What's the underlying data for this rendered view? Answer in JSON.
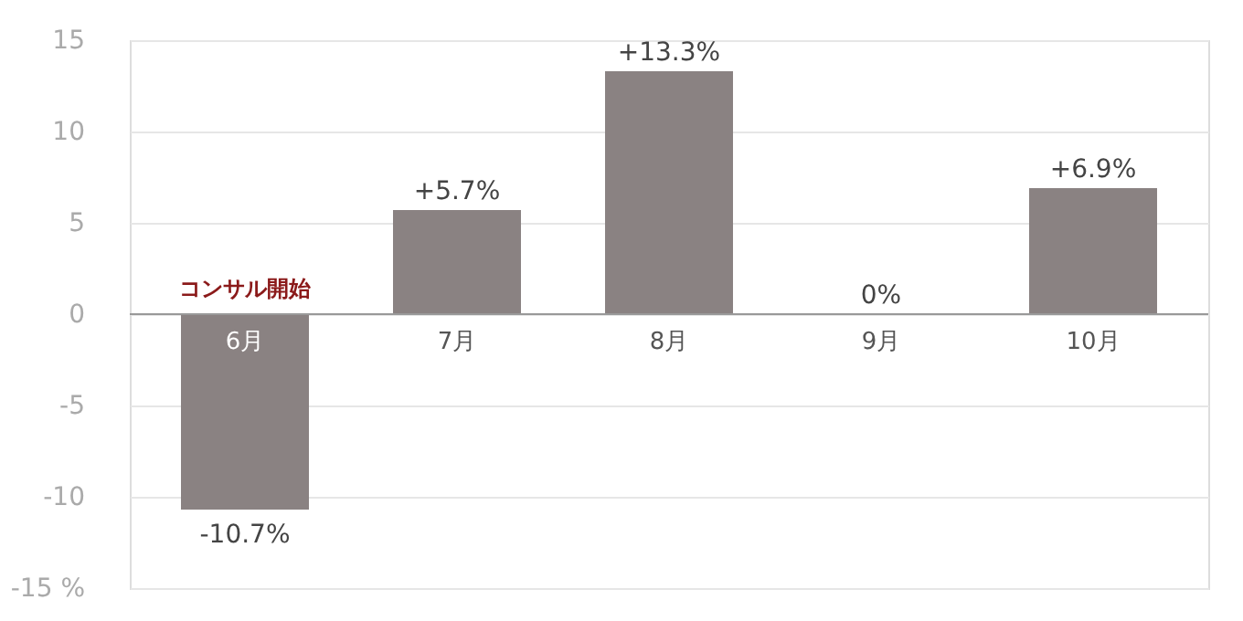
{
  "chart_data": {
    "type": "bar",
    "categories": [
      "6月",
      "7月",
      "8月",
      "9月",
      "10月"
    ],
    "values": [
      -10.7,
      5.7,
      13.3,
      0,
      6.9
    ],
    "color": "#8a8282",
    "value_labels": [
      "-10.7%",
      "+5.7%",
      "+13.3%",
      "0%",
      "+6.9%"
    ],
    "ylim": [
      -15,
      15
    ],
    "yticks": [
      {
        "value": -15,
        "label": "-15 %"
      },
      -10,
      -5,
      0,
      5,
      10,
      15
    ],
    "grid": "y",
    "annotations": [
      {
        "text": "コンサル開始",
        "x": "6月",
        "y": 0
      }
    ]
  }
}
